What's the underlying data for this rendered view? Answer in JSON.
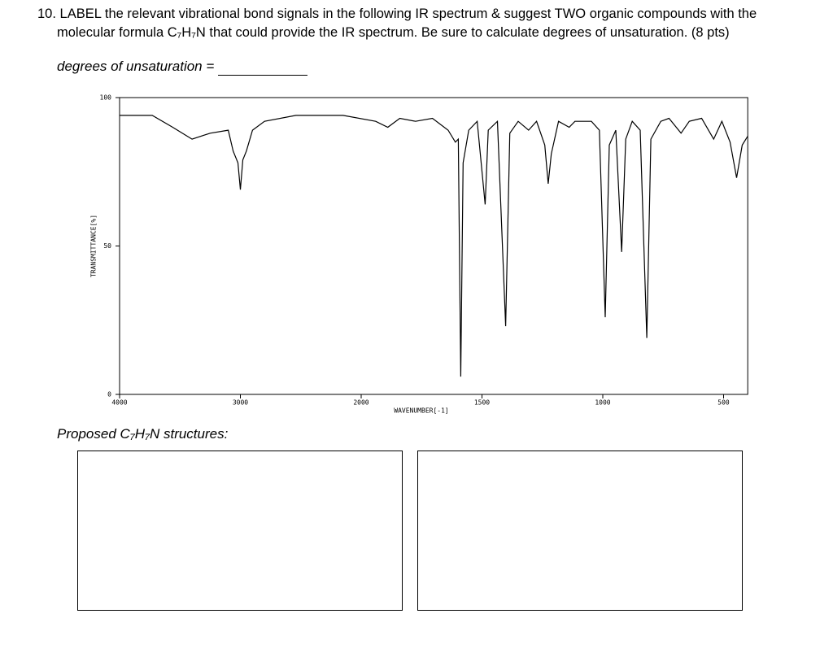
{
  "question": "10. LABEL the relevant vibrational bond signals in the following IR spectrum & suggest TWO organic compounds with the molecular formula C₇H₇N that could provide the IR spectrum. Be sure to calculate degrees of unsaturation. (8 pts)",
  "degrees_label": "degrees of unsaturation =",
  "proposed_label": "Proposed C₇H₇N structures:",
  "chart_data": {
    "type": "line",
    "ylabel": "TRANSMITTANCE[%]",
    "xlabel": "WAVENUMBER[-1]",
    "color": "#000000",
    "x": [
      4000,
      3730,
      3560,
      3400,
      3250,
      3100,
      3060,
      3020,
      3000,
      2980,
      2950,
      2900,
      2800,
      2540,
      2150,
      1940,
      1890,
      1840,
      1775,
      1705,
      1640,
      1610,
      1598,
      1588,
      1578,
      1555,
      1520,
      1487,
      1474,
      1436,
      1402,
      1385,
      1350,
      1307,
      1274,
      1240,
      1226,
      1213,
      1183,
      1139,
      1115,
      1081,
      1047,
      1014,
      990,
      973,
      946,
      922,
      905,
      878,
      845,
      818,
      801,
      760,
      726,
      676,
      642,
      591,
      541,
      507,
      473,
      446,
      423,
      400
    ],
    "values": [
      94,
      94,
      90,
      86,
      88,
      89,
      82,
      78,
      69,
      79,
      82,
      89,
      92,
      94,
      94,
      92,
      90,
      93,
      92,
      93,
      89,
      85,
      86,
      6,
      78,
      89,
      92,
      64,
      89,
      92,
      23,
      88,
      92,
      89,
      92,
      84,
      71,
      81,
      92,
      90,
      92,
      92,
      92,
      89,
      26,
      84,
      89,
      48,
      86,
      92,
      89,
      19,
      86,
      92,
      93,
      88,
      92,
      93,
      86,
      92,
      85,
      73,
      84,
      87
    ],
    "xlim": [
      4000,
      400
    ],
    "ylim": [
      0,
      100
    ],
    "xticks": [
      4000,
      3000,
      2000,
      1500,
      1000,
      500
    ],
    "yticks": [
      0,
      50,
      100
    ]
  }
}
